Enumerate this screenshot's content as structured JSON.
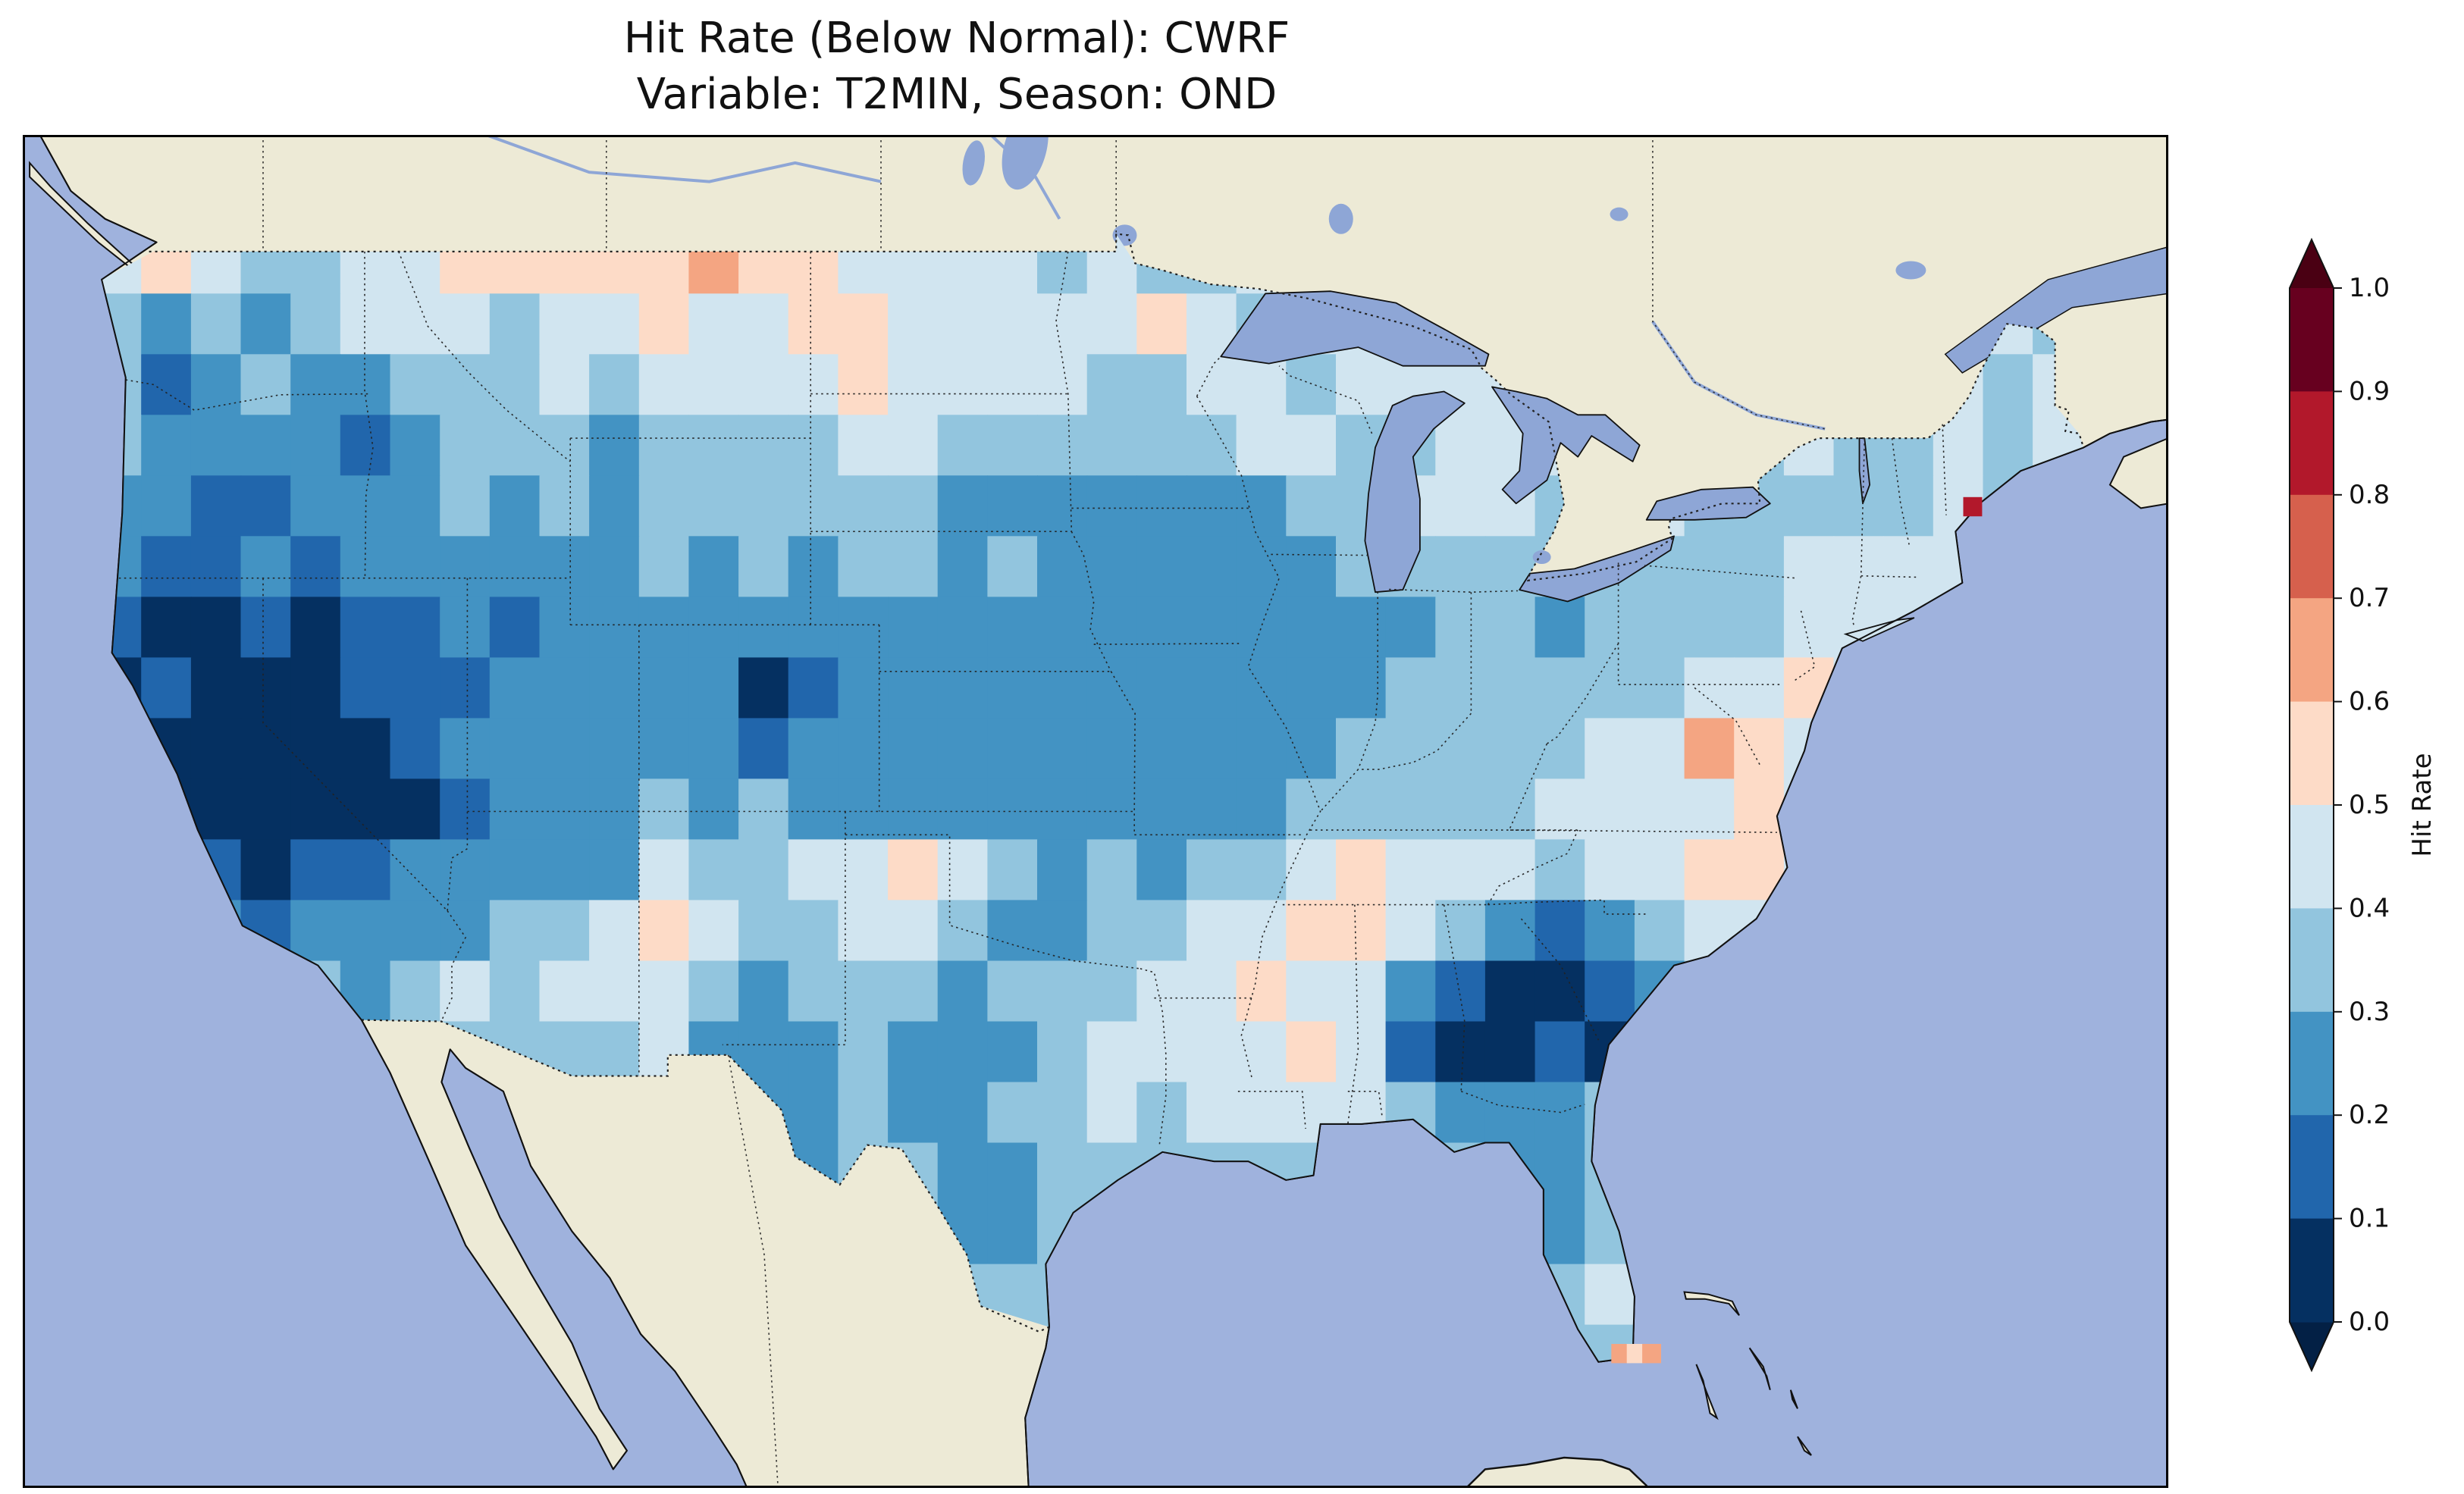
{
  "figure": {
    "title_line1": "Hit Rate (Below Normal): CWRF",
    "title_line2": "Variable: T2MIN, Season: OND"
  },
  "colorbar": {
    "label": "Hit Rate",
    "ticks": [
      "1.0",
      "0.9",
      "0.8",
      "0.7",
      "0.6",
      "0.5",
      "0.4",
      "0.3",
      "0.2",
      "0.1",
      "0.0"
    ],
    "bin_colors": [
      "#053061",
      "#2166ac",
      "#4393c3",
      "#92c5de",
      "#d1e5f0",
      "#fddbc7",
      "#f4a582",
      "#d6604d",
      "#b2182b",
      "#67001f"
    ],
    "under_color": "#032045",
    "over_color": "#4a0013",
    "outline_color": "#111111"
  },
  "map": {
    "ocean_color": "#9fb2dd",
    "land_color": "#edead6",
    "lake_color": "#8ea6d6",
    "coast_color": "#111111",
    "border_color": "#222222",
    "frame_color": "#000000"
  },
  "chart_data": {
    "type": "heatmap",
    "title": "Hit Rate (Below Normal): CWRF",
    "subtitle": "Variable: T2MIN, Season: OND",
    "metric": "Hit Rate (Below Normal)",
    "model": "CWRF",
    "variable": "T2MIN",
    "season": "OND",
    "colorbar_label": "Hit Rate",
    "value_range": [
      0.0,
      1.0
    ],
    "bin_size": 0.1,
    "region": "Contiguous United States",
    "grid": {
      "lon_start": -125.0,
      "dlon": 1.45,
      "ncols": 40,
      "lat_start": 49.4,
      "dlat": 1.3,
      "nrows": 20,
      "values": [
        [
          0.45,
          0.55,
          0.45,
          0.35,
          0.35,
          0.45,
          0.45,
          0.55,
          0.55,
          0.55,
          0.55,
          0.55,
          0.65,
          0.55,
          0.55,
          0.45,
          0.45,
          0.45,
          0.45,
          0.35,
          0.45,
          0.35,
          0.35,
          0.45,
          0.45,
          0.45,
          0.45,
          0.45,
          0.45,
          0.45,
          0.45,
          0.45,
          0.45,
          0.45,
          0.45,
          0.45,
          0.45,
          0.45,
          0.45,
          0.45
        ],
        [
          0.35,
          0.25,
          0.35,
          0.25,
          0.35,
          0.45,
          0.45,
          0.45,
          0.35,
          0.45,
          0.45,
          0.55,
          0.45,
          0.45,
          0.55,
          0.55,
          0.45,
          0.45,
          0.45,
          0.45,
          0.45,
          0.55,
          0.45,
          0.35,
          0.45,
          0.45,
          0.45,
          0.45,
          0.45,
          0.45,
          0.45,
          0.45,
          0.45,
          0.45,
          0.45,
          0.45,
          0.45,
          0.45,
          0.45,
          0.35
        ],
        [
          0.35,
          0.15,
          0.25,
          0.35,
          0.25,
          0.25,
          0.35,
          0.35,
          0.35,
          0.45,
          0.35,
          0.45,
          0.45,
          0.45,
          0.45,
          0.55,
          0.45,
          0.45,
          0.45,
          0.45,
          0.35,
          0.35,
          0.45,
          0.45,
          0.35,
          0.45,
          0.45,
          0.45,
          0.45,
          0.45,
          0.45,
          0.45,
          0.45,
          0.45,
          0.45,
          0.45,
          0.45,
          0.45,
          0.35,
          0.45
        ],
        [
          0.35,
          0.25,
          0.25,
          0.25,
          0.25,
          0.15,
          0.25,
          0.35,
          0.35,
          0.35,
          0.25,
          0.35,
          0.35,
          0.35,
          0.35,
          0.45,
          0.45,
          0.35,
          0.35,
          0.35,
          0.35,
          0.35,
          0.35,
          0.45,
          0.45,
          0.35,
          0.35,
          0.45,
          0.45,
          0.45,
          0.45,
          0.45,
          0.45,
          0.35,
          0.45,
          0.35,
          0.35,
          0.45,
          0.35,
          0.45
        ],
        [
          0.25,
          0.25,
          0.15,
          0.15,
          0.25,
          0.25,
          0.25,
          0.35,
          0.25,
          0.35,
          0.25,
          0.35,
          0.35,
          0.35,
          0.35,
          0.35,
          0.35,
          0.25,
          0.25,
          0.25,
          0.25,
          0.25,
          0.25,
          0.25,
          0.35,
          0.35,
          0.45,
          0.45,
          0.45,
          0.35,
          0.35,
          0.45,
          0.35,
          0.35,
          0.35,
          0.35,
          0.35,
          0.45,
          0.35,
          0.45
        ],
        [
          0.25,
          0.15,
          0.15,
          0.25,
          0.15,
          0.25,
          0.25,
          0.25,
          0.25,
          0.25,
          0.25,
          0.35,
          0.25,
          0.35,
          0.25,
          0.35,
          0.35,
          0.25,
          0.35,
          0.25,
          0.25,
          0.25,
          0.25,
          0.25,
          0.25,
          0.35,
          0.35,
          0.35,
          0.35,
          0.35,
          0.35,
          0.35,
          0.35,
          0.35,
          0.45,
          0.45,
          0.45,
          0.45,
          0.45,
          0.45
        ],
        [
          0.15,
          0.05,
          0.05,
          0.15,
          0.05,
          0.15,
          0.15,
          0.25,
          0.15,
          0.25,
          0.25,
          0.25,
          0.25,
          0.25,
          0.25,
          0.25,
          0.25,
          0.25,
          0.25,
          0.25,
          0.25,
          0.25,
          0.25,
          0.25,
          0.25,
          0.25,
          0.25,
          0.35,
          0.35,
          0.25,
          0.35,
          0.35,
          0.35,
          0.35,
          0.45,
          0.45,
          0.45,
          0.45,
          0.45,
          0.45
        ],
        [
          0.05,
          0.15,
          0.05,
          0.05,
          0.05,
          0.15,
          0.15,
          0.15,
          0.25,
          0.25,
          0.25,
          0.25,
          0.25,
          0.05,
          0.15,
          0.25,
          0.25,
          0.25,
          0.25,
          0.25,
          0.25,
          0.25,
          0.25,
          0.25,
          0.25,
          0.25,
          0.35,
          0.35,
          0.35,
          0.35,
          0.35,
          0.35,
          0.45,
          0.45,
          0.55,
          0.45,
          0.45,
          0.45,
          0.45,
          0.45
        ],
        [
          0.15,
          0.05,
          0.05,
          0.05,
          0.05,
          0.05,
          0.15,
          0.25,
          0.25,
          0.25,
          0.25,
          0.25,
          0.25,
          0.15,
          0.25,
          0.25,
          0.25,
          0.25,
          0.25,
          0.25,
          0.25,
          0.25,
          0.25,
          0.25,
          0.25,
          0.35,
          0.35,
          0.35,
          0.35,
          0.35,
          0.45,
          0.45,
          0.65,
          0.55,
          0.45,
          0.45,
          0.45,
          0.45,
          0.45,
          0.45
        ],
        [
          0.15,
          0.05,
          0.05,
          0.05,
          0.05,
          0.0,
          0.05,
          0.15,
          0.25,
          0.25,
          0.25,
          0.35,
          0.25,
          0.35,
          0.25,
          0.25,
          0.25,
          0.25,
          0.25,
          0.25,
          0.25,
          0.25,
          0.25,
          0.25,
          0.35,
          0.35,
          0.35,
          0.35,
          0.35,
          0.45,
          0.45,
          0.45,
          0.45,
          0.55,
          0.45,
          0.45,
          0.45,
          0.45,
          0.45,
          0.45
        ],
        [
          0.15,
          0.25,
          0.15,
          0.05,
          0.15,
          0.15,
          0.25,
          0.25,
          0.25,
          0.25,
          0.25,
          0.45,
          0.35,
          0.35,
          0.45,
          0.45,
          0.55,
          0.45,
          0.35,
          0.25,
          0.35,
          0.25,
          0.35,
          0.35,
          0.45,
          0.55,
          0.45,
          0.45,
          0.45,
          0.35,
          0.45,
          0.45,
          0.55,
          0.55,
          0.45,
          0.45,
          0.45,
          0.45,
          0.45,
          0.45
        ],
        [
          0.25,
          0.25,
          0.25,
          0.15,
          0.25,
          0.25,
          0.25,
          0.25,
          0.35,
          0.35,
          0.45,
          0.55,
          0.45,
          0.35,
          0.35,
          0.45,
          0.45,
          0.35,
          0.25,
          0.25,
          0.35,
          0.35,
          0.45,
          0.45,
          0.55,
          0.55,
          0.45,
          0.35,
          0.25,
          0.15,
          0.25,
          0.35,
          0.45,
          0.45,
          0.45,
          0.45,
          0.45,
          0.45,
          0.45,
          0.45
        ],
        [
          0.35,
          0.25,
          0.25,
          0.25,
          0.35,
          0.25,
          0.35,
          0.45,
          0.35,
          0.45,
          0.45,
          0.45,
          0.35,
          0.25,
          0.35,
          0.35,
          0.35,
          0.25,
          0.35,
          0.35,
          0.35,
          0.45,
          0.45,
          0.55,
          0.45,
          0.45,
          0.25,
          0.15,
          0.05,
          0.05,
          0.15,
          0.25,
          0.35,
          0.45,
          0.45,
          0.45,
          0.45,
          0.45,
          0.45,
          0.45
        ],
        [
          0.35,
          0.35,
          0.35,
          0.35,
          0.35,
          0.35,
          0.35,
          0.35,
          0.35,
          0.35,
          0.35,
          0.45,
          0.25,
          0.25,
          0.25,
          0.35,
          0.25,
          0.25,
          0.25,
          0.35,
          0.45,
          0.45,
          0.45,
          0.45,
          0.55,
          0.45,
          0.15,
          0.05,
          0.05,
          0.15,
          0.05,
          0.35,
          0.45,
          0.45,
          0.45,
          0.45,
          0.45,
          0.45,
          0.45,
          0.45
        ],
        [
          0.35,
          0.35,
          0.35,
          0.35,
          0.35,
          0.35,
          0.35,
          0.35,
          0.35,
          0.35,
          0.35,
          0.35,
          0.35,
          0.25,
          0.25,
          0.35,
          0.25,
          0.25,
          0.35,
          0.35,
          0.45,
          0.35,
          0.45,
          0.45,
          0.45,
          0.45,
          0.35,
          0.25,
          0.25,
          0.25,
          0.35,
          0.45,
          0.45,
          0.45,
          0.45,
          0.45,
          0.45,
          0.45,
          0.45,
          0.45
        ],
        [
          0.35,
          0.35,
          0.35,
          0.35,
          0.35,
          0.35,
          0.35,
          0.35,
          0.35,
          0.35,
          0.35,
          0.35,
          0.35,
          0.35,
          0.25,
          0.35,
          0.35,
          0.25,
          0.25,
          0.35,
          0.35,
          0.35,
          0.35,
          0.35,
          0.35,
          0.35,
          0.35,
          0.35,
          0.25,
          0.25,
          0.35,
          0.45,
          0.45,
          0.45,
          0.45,
          0.45,
          0.45,
          0.45,
          0.45,
          0.45
        ],
        [
          0.35,
          0.35,
          0.35,
          0.35,
          0.35,
          0.35,
          0.35,
          0.35,
          0.35,
          0.35,
          0.35,
          0.35,
          0.35,
          0.35,
          0.35,
          0.35,
          0.35,
          0.25,
          0.25,
          0.35,
          0.35,
          0.35,
          0.35,
          0.35,
          0.35,
          0.35,
          0.35,
          0.35,
          0.35,
          0.25,
          0.35,
          0.35,
          0.45,
          0.45,
          0.45,
          0.45,
          0.45,
          0.45,
          0.45,
          0.45
        ],
        [
          0.35,
          0.35,
          0.35,
          0.35,
          0.35,
          0.35,
          0.35,
          0.35,
          0.35,
          0.35,
          0.35,
          0.35,
          0.35,
          0.35,
          0.35,
          0.35,
          0.35,
          0.35,
          0.35,
          0.35,
          0.35,
          0.35,
          0.35,
          0.35,
          0.35,
          0.35,
          0.35,
          0.35,
          0.35,
          0.35,
          0.45,
          0.35,
          0.45,
          0.45,
          0.45,
          0.45,
          0.45,
          0.45,
          0.45,
          0.45
        ],
        [
          0.35,
          0.35,
          0.35,
          0.35,
          0.35,
          0.35,
          0.35,
          0.35,
          0.35,
          0.35,
          0.35,
          0.35,
          0.35,
          0.35,
          0.35,
          0.35,
          0.35,
          0.35,
          0.35,
          0.35,
          0.35,
          0.35,
          0.35,
          0.35,
          0.35,
          0.35,
          0.35,
          0.35,
          0.35,
          0.35,
          0.35,
          0.45,
          0.45,
          0.45,
          0.45,
          0.45,
          0.45,
          0.45,
          0.45,
          0.45
        ],
        [
          0.35,
          0.35,
          0.35,
          0.35,
          0.35,
          0.35,
          0.35,
          0.35,
          0.35,
          0.35,
          0.35,
          0.35,
          0.35,
          0.35,
          0.35,
          0.35,
          0.35,
          0.35,
          0.35,
          0.35,
          0.35,
          0.35,
          0.35,
          0.35,
          0.35,
          0.35,
          0.35,
          0.35,
          0.35,
          0.35,
          0.35,
          0.35,
          0.35,
          0.35,
          0.35,
          0.35,
          0.35,
          0.35,
          0.35,
          0.35
        ]
      ]
    },
    "extra_cells": [
      {
        "lon": -80.45,
        "lat": 25.4,
        "value": 0.65
      },
      {
        "lon": -80.0,
        "lat": 25.4,
        "value": 0.55
      },
      {
        "lon": -79.55,
        "lat": 25.4,
        "value": 0.65
      },
      {
        "lon": -70.2,
        "lat": 43.55,
        "value": 0.85
      }
    ]
  }
}
